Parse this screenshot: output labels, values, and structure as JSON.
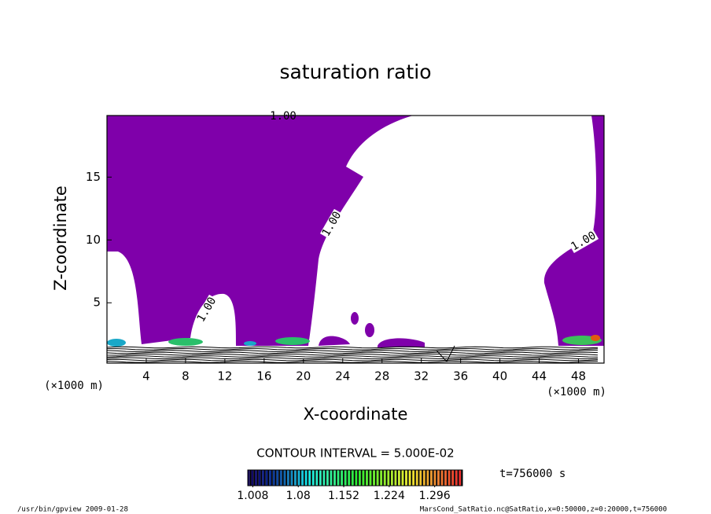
{
  "chart_data": {
    "type": "contour",
    "title": "saturation ratio",
    "x_label": "X-coordinate",
    "y_label": "Z-coordinate",
    "x_unit": "(×1000 m)",
    "y_unit": "(×1000 m)",
    "xlim": [
      0,
      50.6
    ],
    "xticks": [
      4,
      8,
      12,
      16,
      20,
      24,
      28,
      32,
      36,
      40,
      44,
      48
    ],
    "ylim": [
      0.2,
      19.9
    ],
    "yticks": [
      5,
      10,
      15
    ],
    "fill_color": "#7f00aa",
    "contour_labels": [
      "1.00",
      "1.00",
      "1.00",
      "1.00"
    ],
    "contour_interval": "CONTOUR INTERVAL = 5.000E-02",
    "colorbar": {
      "clim": [
        1.0,
        1.34
      ],
      "ticks": [
        1.008,
        1.08,
        1.152,
        1.224,
        1.296
      ]
    },
    "time": "t=756000 s",
    "footer_left": "/usr/bin/gpview  2009-01-28",
    "footer_right": "MarsCond_SatRatio.nc@SatRatio,x=0:50000,z=0:20000,t=756000"
  }
}
